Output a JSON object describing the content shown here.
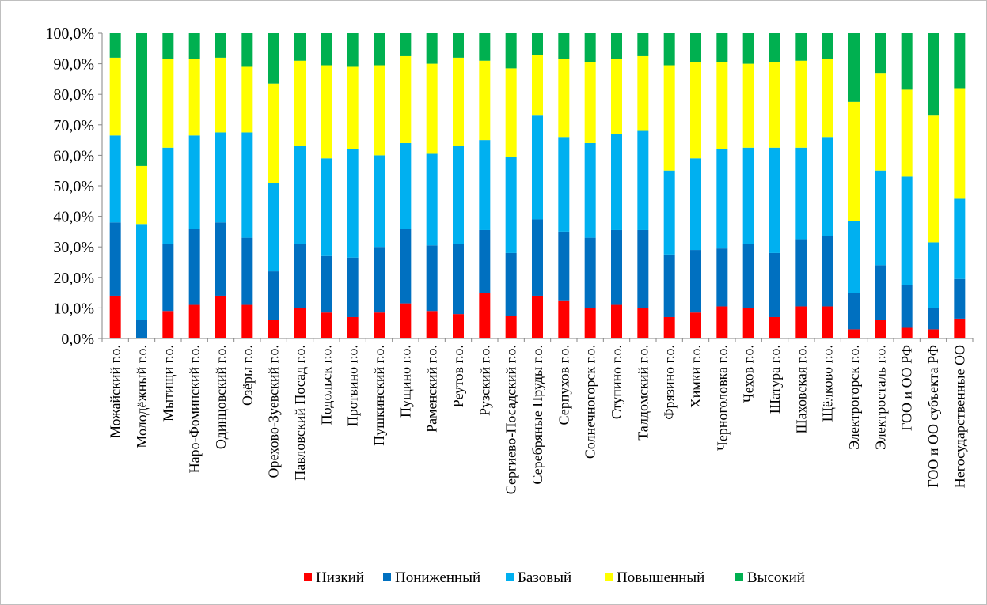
{
  "chart_data": {
    "type": "bar",
    "stacked": true,
    "percent": true,
    "title": "",
    "xlabel": "",
    "ylabel": "",
    "ylim": [
      0,
      100
    ],
    "yticks": [
      "0,0%",
      "10,0%",
      "20,0%",
      "30,0%",
      "40,0%",
      "50,0%",
      "60,0%",
      "70,0%",
      "80,0%",
      "90,0%",
      "100,0%"
    ],
    "grid": false,
    "legend_position": "bottom",
    "categories": [
      "Можайский г.о.",
      "Молодёжный г.о.",
      "Мытищи г.о.",
      "Наро-Фоминский г.о.",
      "Одинцовский г.о.",
      "Озёры г.о.",
      "Орехово-Зуевский г.о.",
      "Павловский Посад г.о.",
      "Подольск г.о.",
      "Протвино г.о.",
      "Пушкинский г.о.",
      "Пущино г.о.",
      "Раменский г.о.",
      "Реутов г.о.",
      "Рузский г.о.",
      "Сергиево-Посадский г.о.",
      "Серебряные Пруды г.о.",
      "Серпухов г.о.",
      "Солнечногорск г.о.",
      "Ступино г.о.",
      "Талдомский г.о.",
      "Фрязино г.о.",
      "Химки г.о.",
      "Черноголовка г.о.",
      "Чехов г.о.",
      "Шатура г.о.",
      "Шаховская г.о.",
      "Щёлково г.о.",
      "Электрогорск г.о.",
      "Электросталь г.о.",
      "ГОО и ОО РФ",
      "ГОО и ОО субъекта РФ",
      "Негосударственные ОО"
    ],
    "series": [
      {
        "name": "Низкий",
        "color": "#ff0000",
        "values": [
          14,
          0,
          9,
          11,
          14,
          11,
          6,
          10,
          8.5,
          7,
          8.5,
          11.5,
          9,
          8,
          15,
          7.5,
          14,
          12.5,
          10,
          11,
          10,
          7,
          8.5,
          10.5,
          10,
          7,
          10.5,
          10.5,
          3,
          6,
          3.5,
          3,
          6.5
        ]
      },
      {
        "name": "Пониженный",
        "color": "#0070c0",
        "values": [
          24,
          6,
          22,
          25,
          24,
          22,
          16,
          21,
          18.5,
          19.5,
          21.5,
          24.5,
          21.5,
          23,
          20.5,
          20.5,
          25,
          22.5,
          23,
          24.5,
          25.5,
          20.5,
          20.5,
          19,
          21,
          21,
          22,
          23,
          12,
          18,
          14,
          7,
          13
        ]
      },
      {
        "name": "Базовый",
        "color": "#00b0f0",
        "values": [
          28.5,
          31.5,
          31.5,
          30.5,
          29.5,
          34.5,
          29,
          32,
          32,
          35.5,
          30,
          28,
          30,
          32,
          29.5,
          31.5,
          34,
          31,
          31,
          31.5,
          32.5,
          27.5,
          30,
          32.5,
          31.5,
          34.5,
          30,
          32.5,
          23.5,
          31,
          35.5,
          21.5,
          26.5
        ]
      },
      {
        "name": "Повышенный",
        "color": "#ffff00",
        "values": [
          25.5,
          19,
          29,
          25,
          24.5,
          21.5,
          32.5,
          28,
          30.5,
          27,
          29.5,
          28.5,
          29.5,
          29,
          26,
          29,
          20,
          25.5,
          26.5,
          24.5,
          24.5,
          34.5,
          31.5,
          28.5,
          27.5,
          28,
          28.5,
          25.5,
          39,
          32,
          28.5,
          41.5,
          36
        ]
      },
      {
        "name": "Высокий",
        "color": "#00b050",
        "values": [
          8,
          43.5,
          8.5,
          8.5,
          8,
          11,
          16.5,
          9,
          10.5,
          11,
          10.5,
          7.5,
          10,
          8,
          9,
          11.5,
          7,
          8.5,
          9.5,
          8.5,
          7.5,
          10.5,
          9.5,
          9.5,
          10,
          9.5,
          9,
          8.5,
          22.5,
          13,
          18.5,
          27,
          18
        ]
      }
    ]
  }
}
